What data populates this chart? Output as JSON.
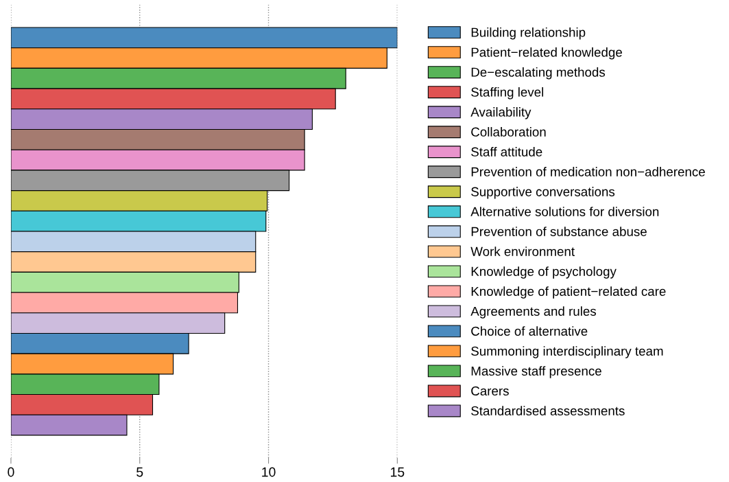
{
  "chart_data": {
    "type": "bar",
    "orientation": "horizontal",
    "categories": [
      null
    ],
    "series": [
      {
        "name": "Building relationship",
        "color": "#4b8bbf",
        "values": [
          15.0
        ]
      },
      {
        "name": "Patient−related knowledge",
        "color": "#ff9c3f",
        "values": [
          14.6
        ]
      },
      {
        "name": "De−escalating methods",
        "color": "#58b458",
        "values": [
          13.0
        ]
      },
      {
        "name": "Staffing level",
        "color": "#e05353",
        "values": [
          12.6
        ]
      },
      {
        "name": "Availability",
        "color": "#a887c8",
        "values": [
          11.7
        ]
      },
      {
        "name": "Collaboration",
        "color": "#a57b70",
        "values": [
          11.4
        ]
      },
      {
        "name": "Staff attitude",
        "color": "#e993cc",
        "values": [
          11.4
        ]
      },
      {
        "name": "Prevention of medication non−adherence",
        "color": "#9a9a9a",
        "values": [
          10.8
        ]
      },
      {
        "name": "Supportive conversations",
        "color": "#c9c94b",
        "values": [
          9.95
        ]
      },
      {
        "name": "Alternative solutions for diversion",
        "color": "#47c8d6",
        "values": [
          9.9
        ]
      },
      {
        "name": "Prevention of substance abuse",
        "color": "#bcd1ea",
        "values": [
          9.5
        ]
      },
      {
        "name": "Work environment",
        "color": "#ffc891",
        "values": [
          9.5
        ]
      },
      {
        "name": "Knowledge of psychology",
        "color": "#aae49b",
        "values": [
          8.85
        ]
      },
      {
        "name": "Knowledge of patient−related care",
        "color": "#ffaaa6",
        "values": [
          8.8
        ]
      },
      {
        "name": "Agreements and rules",
        "color": "#cdbcdd",
        "values": [
          8.3
        ]
      },
      {
        "name": "Choice of alternative",
        "color": "#4b8bbf",
        "values": [
          6.9
        ]
      },
      {
        "name": "Summoning interdisciplinary team",
        "color": "#ff9c3f",
        "values": [
          6.3
        ]
      },
      {
        "name": "Massive staff presence",
        "color": "#58b458",
        "values": [
          5.75
        ]
      },
      {
        "name": "Carers",
        "color": "#e05353",
        "values": [
          5.5
        ]
      },
      {
        "name": "Standardised assessments",
        "color": "#a887c8",
        "values": [
          4.5
        ]
      }
    ],
    "xlim": [
      0,
      15
    ],
    "xticks": [
      0,
      5,
      10,
      15
    ],
    "grid": "x",
    "legend": "right"
  }
}
